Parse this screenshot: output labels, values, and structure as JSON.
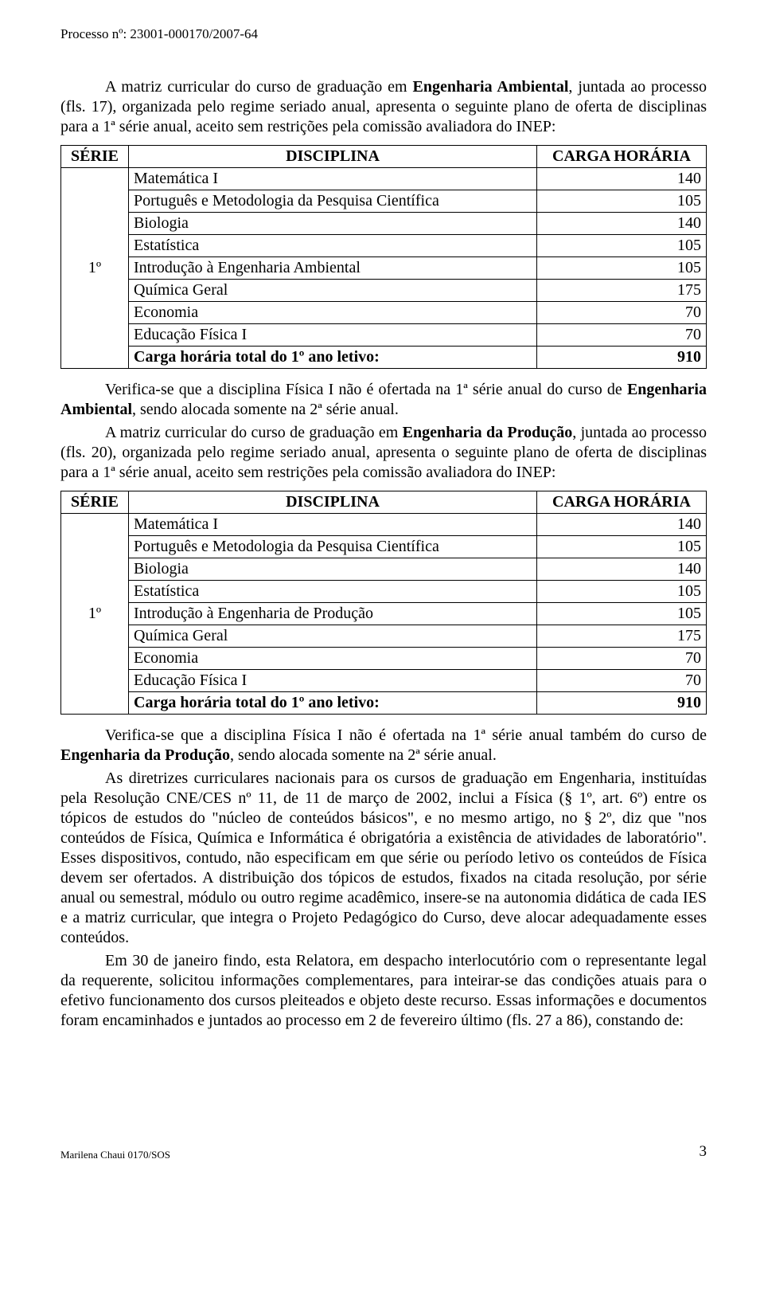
{
  "header": {
    "proc_label": "Processo nº: 23001-000170/2007-64"
  },
  "intro1": {
    "line1_a": "A matriz curricular do curso de graduação em ",
    "line1_b": "Engenharia Ambiental",
    "line1_c": ", juntada ao processo (fls. 17), organizada pelo regime seriado anual, apresenta o seguinte plano de oferta de disciplinas para a 1ª série anual, aceito sem restrições pela comissão avaliadora do INEP:"
  },
  "table1": {
    "head_serie": "SÉRIE",
    "head_disc": "DISCIPLINA",
    "head_carga": "CARGA HORÁRIA",
    "serie": "1º",
    "rows": [
      {
        "d": "Matemática I",
        "c": "140"
      },
      {
        "d": "Português e Metodologia da Pesquisa Científica",
        "c": "105"
      },
      {
        "d": "Biologia",
        "c": "140"
      },
      {
        "d": "Estatística",
        "c": "105"
      },
      {
        "d": "Introdução à Engenharia Ambiental",
        "c": "105"
      },
      {
        "d": "Química Geral",
        "c": "175"
      },
      {
        "d": "Economia",
        "c": "70"
      },
      {
        "d": "Educação Física I",
        "c": "70"
      }
    ],
    "total_label": "Carga horária total do 1º ano letivo:",
    "total_value": "910"
  },
  "mid1": {
    "p1_a": "Verifica-se que a disciplina Física I não é ofertada na 1ª série anual do curso de ",
    "p1_b": "Engenharia Ambiental",
    "p1_c": ", sendo alocada somente na 2ª série anual.",
    "p2_a": "A matriz curricular do curso de graduação em ",
    "p2_b": "Engenharia da Produção",
    "p2_c": ", juntada ao processo (fls. 20), organizada pelo regime seriado anual, apresenta o seguinte plano de oferta de disciplinas para a 1ª série anual, aceito sem restrições pela comissão avaliadora do INEP:"
  },
  "table2": {
    "head_serie": "SÉRIE",
    "head_disc": "DISCIPLINA",
    "head_carga": "CARGA HORÁRIA",
    "serie": "1º",
    "rows": [
      {
        "d": "Matemática I",
        "c": "140"
      },
      {
        "d": "Português e Metodologia da Pesquisa Científica",
        "c": "105"
      },
      {
        "d": "Biologia",
        "c": "140"
      },
      {
        "d": "Estatística",
        "c": "105"
      },
      {
        "d": "Introdução à Engenharia de Produção",
        "c": "105"
      },
      {
        "d": "Química Geral",
        "c": "175"
      },
      {
        "d": "Economia",
        "c": "70"
      },
      {
        "d": "Educação Física I",
        "c": "70"
      }
    ],
    "total_label": "Carga horária total do 1º ano letivo:",
    "total_value": "910"
  },
  "tail": {
    "p1_a": "Verifica-se que a disciplina Física I não é ofertada na 1ª série anual também do curso de ",
    "p1_b": "Engenharia da Produção",
    "p1_c": ", sendo alocada somente na 2ª série anual.",
    "p2": "As diretrizes curriculares nacionais para os cursos de graduação em Engenharia, instituídas pela Resolução CNE/CES nº 11, de 11 de março de 2002, inclui a Física (§ 1º, art. 6º) entre os tópicos de estudos do \"núcleo de conteúdos básicos\", e no mesmo artigo, no § 2º, diz que \"nos conteúdos de Física, Química e Informática é obrigatória a existência de atividades de laboratório\". Esses dispositivos, contudo, não especificam em que série ou período letivo os conteúdos de Física devem ser ofertados. A distribuição dos tópicos de estudos, fixados na citada resolução, por série anual ou semestral, módulo ou outro regime acadêmico, insere-se na autonomia didática de cada IES e a matriz curricular, que integra o Projeto Pedagógico do Curso, deve alocar adequadamente esses conteúdos.",
    "p3": "Em 30 de janeiro findo, esta Relatora, em despacho interlocutório com o representante legal da requerente, solicitou informações complementares, para inteirar-se das condições atuais para o efetivo funcionamento dos cursos pleiteados e objeto deste recurso. Essas informações e documentos foram encaminhados e juntados ao processo em 2 de fevereiro último (fls. 27 a 86), constando de:"
  },
  "footer": {
    "left": "Marilena Chaui 0170/SOS",
    "page": "3"
  }
}
